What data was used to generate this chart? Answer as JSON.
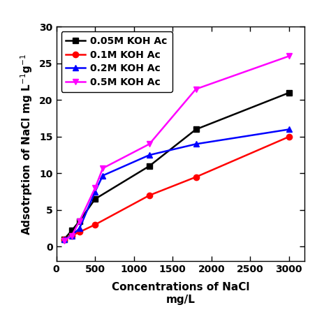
{
  "series": [
    {
      "label": "0.05M KOH Ac",
      "color": "black",
      "marker": "s",
      "x": [
        100,
        200,
        300,
        500,
        1200,
        1800,
        3000
      ],
      "y": [
        1.0,
        2.2,
        3.5,
        6.5,
        11.0,
        16.0,
        21.0
      ]
    },
    {
      "label": "0.1M KOH Ac",
      "color": "red",
      "marker": "o",
      "x": [
        100,
        200,
        300,
        500,
        1200,
        1800,
        3000
      ],
      "y": [
        1.0,
        1.5,
        2.0,
        3.0,
        7.0,
        9.5,
        15.0
      ]
    },
    {
      "label": "0.2M KOH Ac",
      "color": "blue",
      "marker": "^",
      "x": [
        100,
        200,
        300,
        500,
        600,
        1200,
        1800,
        3000
      ],
      "y": [
        1.0,
        1.5,
        2.5,
        7.5,
        9.7,
        12.5,
        14.0,
        16.0
      ]
    },
    {
      "label": "0.5M KOH Ac",
      "color": "magenta",
      "marker": "v",
      "x": [
        100,
        200,
        300,
        500,
        600,
        1200,
        1800,
        3000
      ],
      "y": [
        0.8,
        1.5,
        3.5,
        8.0,
        10.7,
        14.0,
        21.5,
        26.0
      ]
    }
  ],
  "xlabel_line1": "Concentrations of NaCl",
  "xlabel_line2": "mg/L",
  "ylabel": "Adsotrption of NaCl mg L",
  "ylabel_super": "-1",
  "xlim": [
    0,
    3200
  ],
  "ylim": [
    -2,
    30
  ],
  "xticks": [
    0,
    500,
    1000,
    1500,
    2000,
    2500,
    3000
  ],
  "yticks": [
    0,
    5,
    10,
    15,
    20,
    25,
    30
  ],
  "tick_fontsize": 10,
  "label_fontsize": 11,
  "legend_fontsize": 10,
  "linewidth": 1.8,
  "markersize": 6
}
